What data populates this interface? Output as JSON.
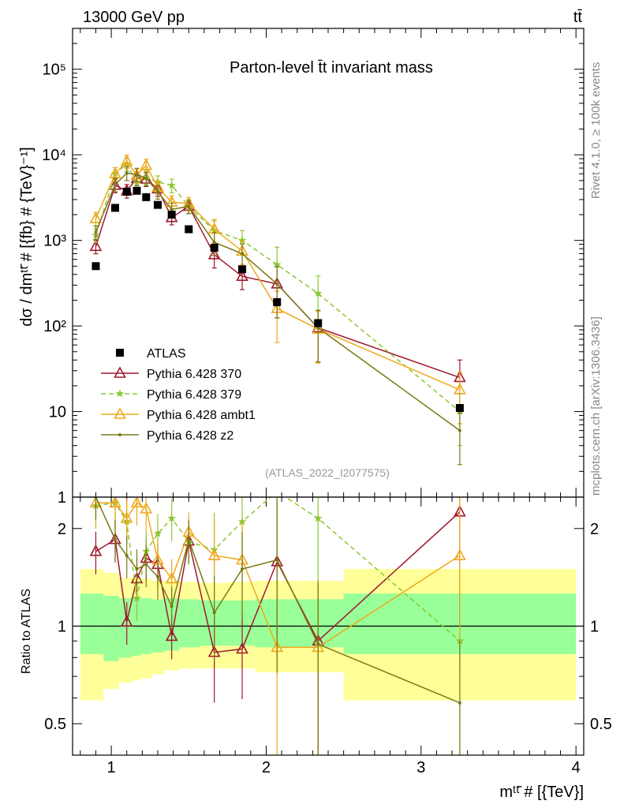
{
  "header": {
    "left": "13000 GeV pp",
    "right": "tt̄"
  },
  "side_texts": {
    "rivet": "Rivet 4.1.0, ≥ 100k events",
    "mcplots": "mcplots.cern.ch [arXiv:1306.3436]"
  },
  "colors": {
    "ATLAS": "#000000",
    "p370": "#a0182e",
    "p379": "#8cc832",
    "ambt1": "#f0a81a",
    "z2": "#7a7a14",
    "band_inner": "#99ff99",
    "band_outer": "#ffff99"
  },
  "chart_data": [
    {
      "type": "scatter",
      "title": "Parton-level t̄t invariant mass",
      "watermark": "(ATLAS_2022_I2077575)",
      "ylabel": "dσ / dmᵗᵗ̄ # [{fb} # {TeV}⁻¹]",
      "yscale": "log",
      "ylim": [
        1,
        300000
      ],
      "xlim": [
        0.75,
        4.05
      ],
      "y_ticks": [
        {
          "value": 10,
          "label": "10"
        },
        {
          "value": 100,
          "label": "10²"
        },
        {
          "value": 1000,
          "label": "10³"
        },
        {
          "value": 10000,
          "label": "10⁴"
        },
        {
          "value": 100000,
          "label": "10⁵"
        },
        {
          "value": 1,
          "label": "1"
        }
      ],
      "x": [
        0.9,
        1.025,
        1.1,
        1.165,
        1.225,
        1.3,
        1.39,
        1.5,
        1.665,
        1.845,
        2.07,
        2.335,
        3.25
      ],
      "series": [
        {
          "name": "ATLAS",
          "key": "ATLAS",
          "marker": "square",
          "dashed": false,
          "values": [
            500,
            2400,
            3700,
            3800,
            3200,
            2600,
            2000,
            1350,
            820,
            460,
            190,
            108,
            11
          ]
        },
        {
          "name": "Pythia 6.428 370",
          "key": "p370",
          "marker": "triangle-open",
          "dashed": false,
          "values": [
            850,
            4400,
            3800,
            5300,
            5200,
            4000,
            1850,
            2500,
            680,
            380,
            310,
            95,
            25
          ]
        },
        {
          "name": "Pythia 6.428 379",
          "key": "p379",
          "marker": "star",
          "dashed": true,
          "values": [
            1150,
            6000,
            7800,
            4700,
            5500,
            4800,
            4400,
            2500,
            1300,
            1000,
            520,
            240,
            10
          ]
        },
        {
          "name": "Pythia 6.428 ambt1",
          "key": "ambt1",
          "marker": "triangle-open",
          "dashed": false,
          "values": [
            1800,
            6000,
            8400,
            5800,
            7500,
            4200,
            2800,
            2700,
            1350,
            750,
            160,
            92,
            18
          ]
        },
        {
          "name": "Pythia 6.428 z2",
          "key": "z2",
          "marker": "dot",
          "dashed": false,
          "values": [
            1250,
            4500,
            6100,
            5900,
            5300,
            3700,
            2300,
            2500,
            950,
            700,
            310,
            95,
            6
          ]
        }
      ]
    },
    {
      "type": "line",
      "ylabel": "Ratio to ATLAS",
      "xlabel": "mᵗᵗ̄ # [{TeV}]",
      "yscale": "log",
      "ylim": [
        0.4,
        2.5
      ],
      "xlim": [
        0.75,
        4.05
      ],
      "x_ticks": [
        1,
        2,
        3,
        4
      ],
      "y_ticks": [
        {
          "value": 0.5,
          "label": "0.5"
        },
        {
          "value": 1,
          "label": "1"
        },
        {
          "value": 2,
          "label": "2"
        }
      ],
      "band_edges": [
        0.8,
        0.95,
        1.05,
        1.135,
        1.19,
        1.26,
        1.34,
        1.44,
        1.57,
        1.76,
        1.93,
        2.21,
        2.5,
        4.0
      ],
      "band_inner": [
        [
          0.82,
          1.26
        ],
        [
          0.78,
          1.24
        ],
        [
          0.8,
          1.22
        ],
        [
          0.81,
          1.23
        ],
        [
          0.82,
          1.22
        ],
        [
          0.83,
          1.21
        ],
        [
          0.84,
          1.22
        ],
        [
          0.86,
          1.21
        ],
        [
          0.87,
          1.2
        ],
        [
          0.87,
          1.2
        ],
        [
          0.86,
          1.21
        ],
        [
          0.86,
          1.21
        ],
        [
          0.82,
          1.26
        ]
      ],
      "band_outer": [
        [
          0.59,
          1.5
        ],
        [
          0.64,
          1.46
        ],
        [
          0.67,
          1.41
        ],
        [
          0.68,
          1.41
        ],
        [
          0.69,
          1.4
        ],
        [
          0.71,
          1.38
        ],
        [
          0.73,
          1.38
        ],
        [
          0.74,
          1.37
        ],
        [
          0.74,
          1.36
        ],
        [
          0.74,
          1.37
        ],
        [
          0.72,
          1.38
        ],
        [
          0.72,
          1.38
        ],
        [
          0.59,
          1.5
        ]
      ],
      "series": [
        {
          "name": "Pythia 6.428 370",
          "key": "p370",
          "marker": "triangle-open",
          "dashed": false,
          "values": [
            1.7,
            1.85,
            1.03,
            1.4,
            1.62,
            1.55,
            0.93,
            1.83,
            0.83,
            0.85,
            1.58,
            0.9,
            2.25
          ]
        },
        {
          "name": "Pythia 6.428 379",
          "key": "p379",
          "marker": "star",
          "dashed": true,
          "values": [
            2.35,
            2.4,
            2.1,
            1.22,
            1.7,
            1.93,
            2.15,
            1.82,
            1.72,
            2.1,
            2.6,
            2.15,
            0.9
          ]
        },
        {
          "name": "Pythia 6.428 ambt1",
          "key": "ambt1",
          "marker": "triangle-open",
          "dashed": false,
          "values": [
            2.4,
            2.4,
            2.15,
            2.4,
            2.3,
            1.6,
            1.4,
            1.95,
            1.65,
            1.6,
            0.86,
            0.86,
            1.65
          ]
        },
        {
          "name": "Pythia 6.428 z2",
          "key": "z2",
          "marker": "dot",
          "dashed": false,
          "values": [
            2.5,
            1.85,
            1.65,
            1.5,
            1.55,
            1.42,
            1.15,
            1.85,
            1.1,
            1.5,
            1.6,
            0.88,
            0.58
          ]
        }
      ]
    }
  ]
}
